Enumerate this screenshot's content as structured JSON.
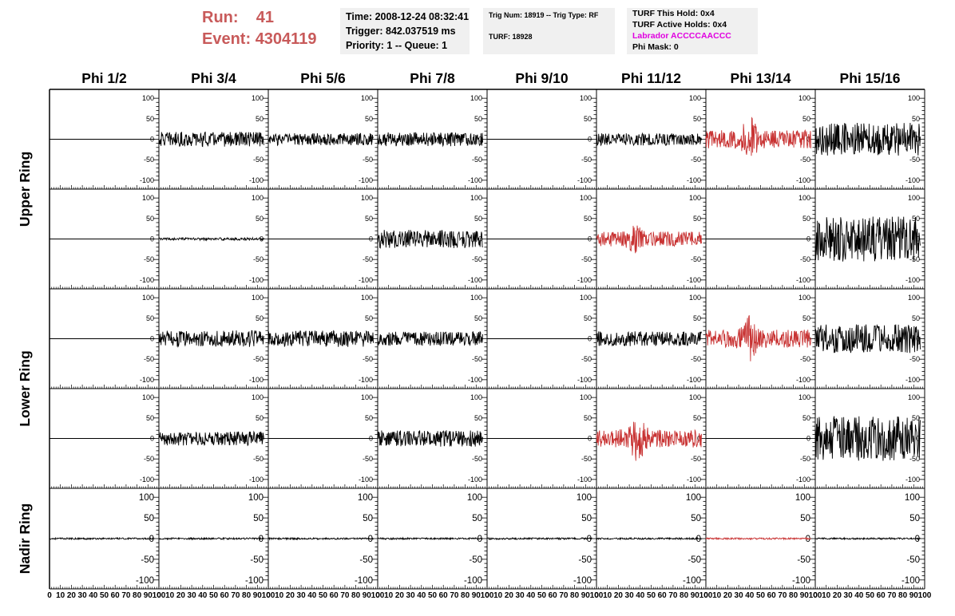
{
  "header": {
    "run_label": "Run:",
    "run_value": "41",
    "event_label": "Event:",
    "event_value": "4304119"
  },
  "info_time": {
    "time": "Time: 2008-12-24 08:32:41",
    "trigger": "Trigger: 842.037519 ms",
    "priority": "Priority: 1 -- Queue: 1"
  },
  "info_trig": {
    "trig": "Trig Num: 18919 -- Trig Type: RF",
    "turf": "TURF: 18928"
  },
  "info_turf": {
    "this_hold": "TURF This Hold: 0x4",
    "active_holds": "TURF Active Holds: 0x4",
    "labrador": "Labrador ACCCCAACCC",
    "phi_mask": "Phi Mask: 0"
  },
  "colors": {
    "header_red": "#c85a5a",
    "highlight_trace": "#c83232",
    "normal_trace": "#000000",
    "labrador_magenta": "#e000e0",
    "info_box_bg": "#f0f0f0"
  },
  "chart_data": {
    "type": "line",
    "columns": [
      "Phi 1/2",
      "Phi 3/4",
      "Phi 5/6",
      "Phi 7/8",
      "Phi 9/10",
      "Phi 11/12",
      "Phi 13/14",
      "Phi 15/16"
    ],
    "ring_labels": [
      "Upper Ring",
      "Lower Ring",
      "Nadir Ring"
    ],
    "ylim": [
      -110,
      110
    ],
    "xlim": [
      0,
      100
    ],
    "y_ticks": [
      -100,
      -50,
      0,
      50,
      100
    ],
    "x_ticks": [
      0,
      10,
      20,
      30,
      40,
      50,
      60,
      70,
      80,
      90,
      100
    ],
    "x_tick_labels": [
      "0",
      "10",
      "20",
      "30",
      "40",
      "50",
      "60",
      "70",
      "80",
      "90",
      "100"
    ],
    "trace_x_start": 0,
    "trace_x_end": 96,
    "trace_points": 240,
    "panels": [
      {
        "row": 0,
        "col": 0,
        "amplitude": 0,
        "highlight": false
      },
      {
        "row": 0,
        "col": 1,
        "amplitude": 18,
        "highlight": false
      },
      {
        "row": 0,
        "col": 2,
        "amplitude": 15,
        "highlight": false
      },
      {
        "row": 0,
        "col": 3,
        "amplitude": 17,
        "highlight": false
      },
      {
        "row": 0,
        "col": 4,
        "amplitude": 0,
        "highlight": false
      },
      {
        "row": 0,
        "col": 5,
        "amplitude": 15,
        "highlight": false
      },
      {
        "row": 0,
        "col": 6,
        "amplitude": 22,
        "highlight": true,
        "burst_center": 40,
        "burst_peak": 60
      },
      {
        "row": 0,
        "col": 7,
        "amplitude": 40,
        "highlight": false
      },
      {
        "row": 1,
        "col": 0,
        "amplitude": 0,
        "highlight": false
      },
      {
        "row": 1,
        "col": 1,
        "amplitude": 3,
        "highlight": false
      },
      {
        "row": 1,
        "col": 2,
        "amplitude": 0,
        "highlight": false
      },
      {
        "row": 1,
        "col": 3,
        "amplitude": 22,
        "highlight": false
      },
      {
        "row": 1,
        "col": 4,
        "amplitude": 0,
        "highlight": false
      },
      {
        "row": 1,
        "col": 5,
        "amplitude": 18,
        "highlight": true,
        "burst_center": 35,
        "burst_peak": 38
      },
      {
        "row": 1,
        "col": 6,
        "amplitude": 0,
        "highlight": false
      },
      {
        "row": 1,
        "col": 7,
        "amplitude": 55,
        "highlight": false
      },
      {
        "row": 2,
        "col": 0,
        "amplitude": 0,
        "highlight": false
      },
      {
        "row": 2,
        "col": 1,
        "amplitude": 20,
        "highlight": false
      },
      {
        "row": 2,
        "col": 2,
        "amplitude": 20,
        "highlight": false
      },
      {
        "row": 2,
        "col": 3,
        "amplitude": 17,
        "highlight": false
      },
      {
        "row": 2,
        "col": 4,
        "amplitude": 0,
        "highlight": false
      },
      {
        "row": 2,
        "col": 5,
        "amplitude": 18,
        "highlight": false
      },
      {
        "row": 2,
        "col": 6,
        "amplitude": 22,
        "highlight": true,
        "burst_center": 40,
        "burst_peak": 58
      },
      {
        "row": 2,
        "col": 7,
        "amplitude": 35,
        "highlight": false
      },
      {
        "row": 3,
        "col": 0,
        "amplitude": 0,
        "highlight": false
      },
      {
        "row": 3,
        "col": 1,
        "amplitude": 17,
        "highlight": false
      },
      {
        "row": 3,
        "col": 2,
        "amplitude": 0,
        "highlight": false
      },
      {
        "row": 3,
        "col": 3,
        "amplitude": 20,
        "highlight": false
      },
      {
        "row": 3,
        "col": 4,
        "amplitude": 0,
        "highlight": false
      },
      {
        "row": 3,
        "col": 5,
        "amplitude": 22,
        "highlight": true,
        "burst_center": 38,
        "burst_peak": 65
      },
      {
        "row": 3,
        "col": 6,
        "amplitude": 0,
        "highlight": false
      },
      {
        "row": 3,
        "col": 7,
        "amplitude": 55,
        "highlight": false
      },
      {
        "row": 4,
        "col": 0,
        "amplitude": 2,
        "highlight": false
      },
      {
        "row": 4,
        "col": 1,
        "amplitude": 2,
        "highlight": false
      },
      {
        "row": 4,
        "col": 2,
        "amplitude": 2,
        "highlight": false
      },
      {
        "row": 4,
        "col": 3,
        "amplitude": 2,
        "highlight": false
      },
      {
        "row": 4,
        "col": 4,
        "amplitude": 2,
        "highlight": false
      },
      {
        "row": 4,
        "col": 5,
        "amplitude": 2,
        "highlight": false
      },
      {
        "row": 4,
        "col": 6,
        "amplitude": 2,
        "highlight": true
      },
      {
        "row": 4,
        "col": 7,
        "amplitude": 2,
        "highlight": false
      }
    ]
  }
}
